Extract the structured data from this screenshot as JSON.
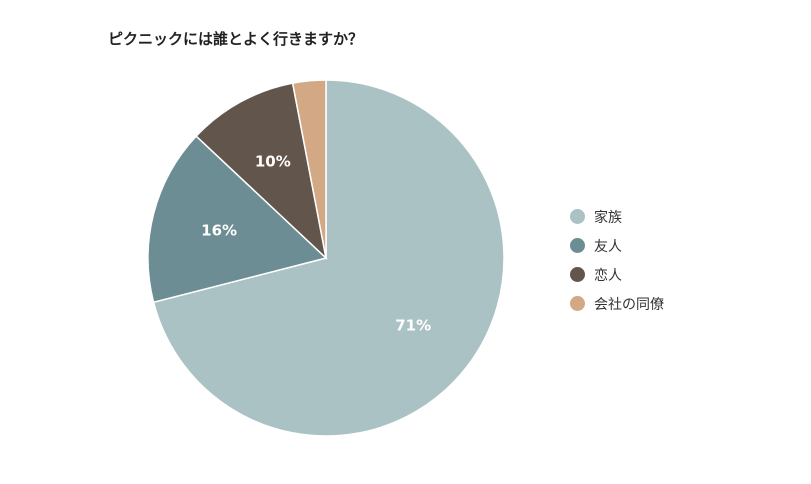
{
  "chart_data": {
    "type": "pie",
    "title": "ピクニックには誰とよく行きますか？",
    "categories": [
      "家族",
      "友人",
      "恋人",
      "会社の同僚"
    ],
    "values": [
      71,
      16,
      10,
      3
    ],
    "labels": [
      "71%",
      "16%",
      "10%",
      ""
    ],
    "colors": [
      "#aac2c3",
      "#6b8d93",
      "#62554c",
      "#d3a885"
    ],
    "legend_position": "right",
    "unit": "%"
  }
}
